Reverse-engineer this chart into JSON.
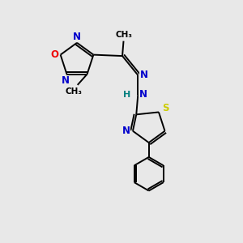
{
  "background_color": "#e8e8e8",
  "colors": {
    "N": "#0000cc",
    "O": "#ee0000",
    "S": "#cccc00",
    "C": "#000000",
    "H": "#008080"
  },
  "figsize": [
    3.0,
    3.0
  ],
  "dpi": 100
}
